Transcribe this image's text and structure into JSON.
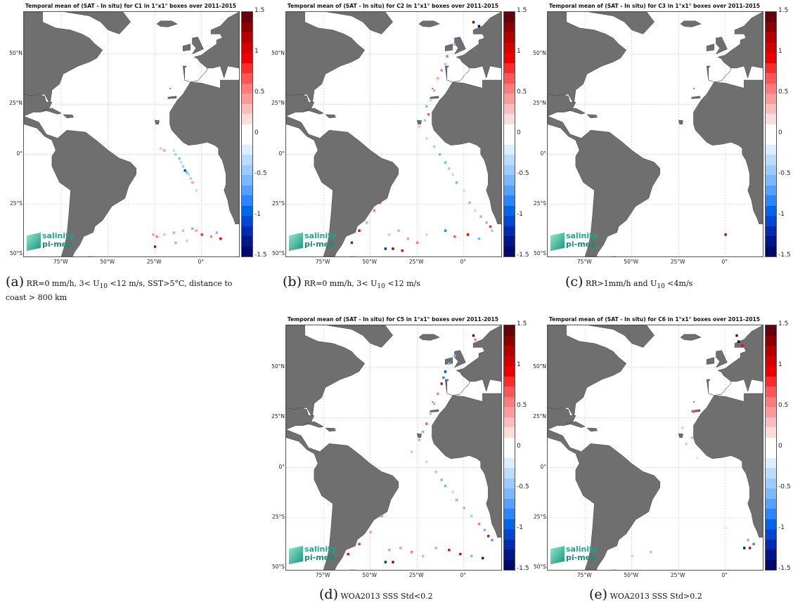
{
  "figure": {
    "colorbar": {
      "ticks": [
        "1.5",
        "1",
        "0.5",
        "0",
        "-0.5",
        "-1",
        "-1.5"
      ],
      "ticks_truncated": [
        "1.5",
        "1",
        "0.5",
        "0",
        "-0.5",
        "-1",
        "-1.5"
      ],
      "colors": [
        "#67000d",
        "#8b0000",
        "#b30000",
        "#d40000",
        "#ee0000",
        "#ff2a2a",
        "#ff5555",
        "#ff7a7a",
        "#ff9a9a",
        "#ffbcbc",
        "#ffdcdc",
        "#ffffff",
        "#ffffff",
        "#dceeff",
        "#bcdcff",
        "#9accff",
        "#7ab8ff",
        "#55a0ff",
        "#2a85ff",
        "#0066ee",
        "#0047d4",
        "#002bb3",
        "#00168b",
        "#000a6b"
      ]
    },
    "lat_labels": [
      "50°N",
      "25°N",
      "0°",
      "25°S",
      "50°S"
    ],
    "lon_labels": [
      "75°W",
      "50°W",
      "25°W",
      "0°"
    ],
    "logo": {
      "line1": "salinity",
      "line2": "pi-mep"
    }
  },
  "panels": [
    {
      "title": "Temporal mean of (SAT - In situ) for C1 in 1°x1° boxes over 2011-2015",
      "caption_label": "(a)",
      "caption_text": "RR=0 mm/h, 3< U",
      "caption_sub": "10",
      "caption_text2": " <12 m/s, SST>5°C, distance to coast > 800 km"
    },
    {
      "title": "Temporal mean of (SAT - In situ) for C2 in 1°x1° boxes over 2011-2015",
      "caption_label": "(b)",
      "caption_text": "RR=0 mm/h, 3< U",
      "caption_sub": "10",
      "caption_text2": " <12 m/s"
    },
    {
      "title": "Temporal mean of (SAT - In situ) for C3 in 1°x1° boxes over 2011-2015",
      "caption_label": "(c)",
      "caption_text": "RR>1mm/h and U",
      "caption_sub": "10",
      "caption_text2": " <4m/s"
    },
    {
      "title": "Temporal mean of (SAT - In situ) for C5 in 1°x1° boxes over 2011-2015",
      "caption_label": "(d)",
      "caption_text": "WOA2013 SSS Std<0.2",
      "caption_sub": "",
      "caption_text2": ""
    },
    {
      "title": "Temporal mean of (SAT - In situ) for C6 in 1°x1° boxes over 2011-2015",
      "caption_label": "(e)",
      "caption_text": "WOA2013 SSS Std>0.2",
      "caption_sub": "",
      "caption_text2": ""
    }
  ],
  "chart_data": [
    {
      "type": "heatmap",
      "title": "Temporal mean of (SAT - In situ) for C1 in 1°x1° boxes over 2011-2015",
      "colorbar_range": [
        -1.5,
        1.5
      ],
      "points": [
        [
          -22,
          3,
          0.3
        ],
        [
          -20,
          2,
          0.5
        ],
        [
          -15,
          2,
          -0.3
        ],
        [
          -14,
          0,
          -0.4
        ],
        [
          -12,
          -2,
          -0.5
        ],
        [
          -11,
          -4,
          -0.3
        ],
        [
          -10,
          -6,
          -0.4
        ],
        [
          -9,
          -8,
          -1.0
        ],
        [
          -8,
          -9,
          -0.6
        ],
        [
          -7,
          -10,
          -0.3
        ],
        [
          -6,
          -12,
          -0.4
        ],
        [
          -5,
          -14,
          0.4
        ],
        [
          -3,
          -18,
          -0.3
        ],
        [
          -26,
          -40,
          0.4
        ],
        [
          -24,
          -41,
          0.6
        ],
        [
          -20,
          -40,
          0.3
        ],
        [
          -15,
          -39,
          0.5
        ],
        [
          -10,
          -38,
          -0.4
        ],
        [
          -5,
          -37,
          -0.6
        ],
        [
          -3,
          -38,
          0.5
        ],
        [
          0,
          -40,
          0.8
        ],
        [
          5,
          -41,
          0.6
        ],
        [
          8,
          -39,
          -0.5
        ],
        [
          10,
          -42,
          1.0
        ],
        [
          -8,
          -43,
          0.3
        ],
        [
          -14,
          -44,
          0.5
        ],
        [
          -25,
          -46,
          1.1
        ]
      ]
    },
    {
      "type": "heatmap",
      "title": "Temporal mean of (SAT - In situ) for C2 in 1°x1° boxes over 2011-2015",
      "colorbar_range": [
        -1.5,
        1.5
      ],
      "points": [
        [
          5,
          66,
          1.3
        ],
        [
          8,
          64,
          -1.5
        ],
        [
          -5,
          55,
          -0.5
        ],
        [
          -9,
          49,
          -0.7
        ],
        [
          -10,
          45,
          -0.4
        ],
        [
          -12,
          42,
          0.6
        ],
        [
          -14,
          38,
          0.4
        ],
        [
          -16,
          32,
          0.5
        ],
        [
          -18,
          27,
          -0.3
        ],
        [
          -20,
          24,
          -0.6
        ],
        [
          -19,
          20,
          0.7
        ],
        [
          -21,
          17,
          -0.4
        ],
        [
          -24,
          14,
          0.3
        ],
        [
          -20,
          8,
          -0.3
        ],
        [
          -16,
          4,
          -0.4
        ],
        [
          -13,
          0,
          -0.5
        ],
        [
          -10,
          -4,
          -0.6
        ],
        [
          -8,
          -7,
          -0.4
        ],
        [
          -6,
          -10,
          -0.3
        ],
        [
          -4,
          -14,
          -0.5
        ],
        [
          0,
          -18,
          -0.3
        ],
        [
          3,
          -24,
          0.4
        ],
        [
          6,
          -28,
          -0.3
        ],
        [
          9,
          -31,
          0.5
        ],
        [
          12,
          -34,
          -0.6
        ],
        [
          14,
          -36,
          0.8
        ],
        [
          15,
          -38,
          -0.4
        ],
        [
          -45,
          -24,
          0.8
        ],
        [
          -48,
          -28,
          0.6
        ],
        [
          -52,
          -34,
          0.5
        ],
        [
          -56,
          -38,
          0.9
        ],
        [
          -60,
          -44,
          1.2
        ],
        [
          -40,
          -40,
          0.3
        ],
        [
          -35,
          -38,
          0.4
        ],
        [
          -30,
          -42,
          0.5
        ],
        [
          -25,
          -44,
          0.6
        ],
        [
          -20,
          -40,
          -0.3
        ],
        [
          -10,
          -38,
          -0.8
        ],
        [
          -5,
          -41,
          0.7
        ],
        [
          2,
          -40,
          1.0
        ],
        [
          8,
          -42,
          -0.5
        ],
        [
          -38,
          -47,
          1.3
        ],
        [
          -42,
          -47,
          -1.2
        ],
        [
          -33,
          -48,
          0.9
        ]
      ]
    },
    {
      "type": "heatmap",
      "title": "Temporal mean of (SAT - In situ) for C3 in 1°x1° boxes over 2011-2015",
      "colorbar_range": [
        -1.5,
        1.5
      ],
      "points": [
        [
          0,
          -40,
          1.2
        ]
      ]
    },
    {
      "type": "heatmap",
      "title": "Temporal mean of (SAT - In situ) for C5 in 1°x1° boxes over 2011-2015",
      "colorbar_range": [
        -1.5,
        1.5
      ],
      "points": [
        [
          5,
          66,
          1.4
        ],
        [
          6,
          64,
          0.6
        ],
        [
          -5,
          56,
          -0.6
        ],
        [
          -8,
          52,
          -0.5
        ],
        [
          -10,
          48,
          -1.0
        ],
        [
          -11,
          45,
          -0.8
        ],
        [
          -12,
          42,
          0.9
        ],
        [
          -14,
          37,
          0.6
        ],
        [
          -16,
          32,
          0.5
        ],
        [
          -18,
          27,
          -0.4
        ],
        [
          -20,
          22,
          0.7
        ],
        [
          -22,
          18,
          -0.5
        ],
        [
          -24,
          14,
          0.4
        ],
        [
          -28,
          8,
          0.3
        ],
        [
          -20,
          3,
          -0.3
        ],
        [
          -15,
          -2,
          -0.4
        ],
        [
          -12,
          -6,
          -0.5
        ],
        [
          -10,
          -9,
          -0.6
        ],
        [
          -6,
          -12,
          -0.3
        ],
        [
          -4,
          -16,
          0.4
        ],
        [
          0,
          -20,
          0.5
        ],
        [
          4,
          -24,
          -0.4
        ],
        [
          8,
          -28,
          0.6
        ],
        [
          11,
          -31,
          -0.5
        ],
        [
          13,
          -34,
          1.0
        ],
        [
          15,
          -36,
          -0.7
        ],
        [
          -44,
          -24,
          0.6
        ],
        [
          -50,
          -32,
          0.5
        ],
        [
          -56,
          -38,
          0.8
        ],
        [
          -62,
          -43,
          1.0
        ],
        [
          -40,
          -41,
          0.4
        ],
        [
          -34,
          -40,
          0.5
        ],
        [
          -28,
          -42,
          0.6
        ],
        [
          -22,
          -44,
          -0.4
        ],
        [
          -15,
          -40,
          0.5
        ],
        [
          -8,
          -41,
          0.9
        ],
        [
          -2,
          -43,
          1.1
        ],
        [
          4,
          -44,
          -0.5
        ],
        [
          10,
          -45,
          1.4
        ],
        [
          -38,
          -47,
          1.3
        ],
        [
          -42,
          -47,
          -1.2
        ]
      ]
    },
    {
      "type": "heatmap",
      "title": "Temporal mean of (SAT - In situ) for C6 in 1°x1° boxes over 2011-2015",
      "colorbar_range": [
        -1.5,
        1.5
      ],
      "points": [
        [
          6,
          66,
          1.4
        ],
        [
          7,
          63,
          -1.5
        ],
        [
          9,
          61,
          0.9
        ],
        [
          -17,
          28,
          0.7
        ],
        [
          -23,
          20,
          -0.3
        ],
        [
          -18,
          15,
          -0.4
        ],
        [
          -21,
          12,
          0.3
        ],
        [
          -15,
          5,
          0.2
        ],
        [
          -40,
          -42,
          -0.4
        ],
        [
          -50,
          -44,
          0.3
        ],
        [
          12,
          -36,
          -0.5
        ],
        [
          10,
          -40,
          -1.3
        ],
        [
          13,
          -40,
          1.1
        ],
        [
          15,
          -38,
          -0.8
        ],
        [
          0,
          -30,
          0.2
        ]
      ]
    }
  ]
}
